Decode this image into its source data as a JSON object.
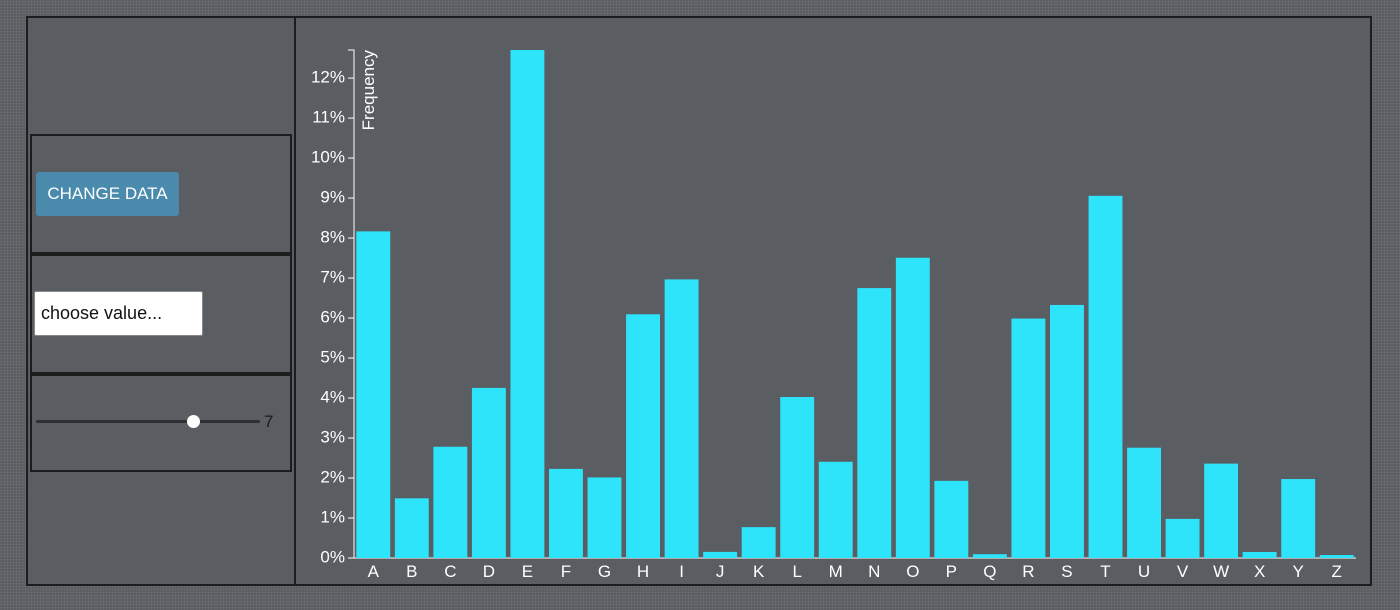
{
  "controls": {
    "change_button_label": "CHANGE DATA",
    "value_placeholder": "choose value...",
    "slider_value": "7",
    "slider_fraction": 0.7
  },
  "colors": {
    "bar": "#2ee4fa",
    "axis": "#ffffff",
    "text": "#ffffff",
    "background": "#5a5d61"
  },
  "chart_data": {
    "type": "bar",
    "title": "",
    "xlabel": "",
    "ylabel": "Frequency",
    "categories": [
      "A",
      "B",
      "C",
      "D",
      "E",
      "F",
      "G",
      "H",
      "I",
      "J",
      "K",
      "L",
      "M",
      "N",
      "O",
      "P",
      "Q",
      "R",
      "S",
      "T",
      "U",
      "V",
      "W",
      "X",
      "Y",
      "Z"
    ],
    "values": [
      8.167,
      1.492,
      2.782,
      4.253,
      12.702,
      2.228,
      2.015,
      6.094,
      6.966,
      0.153,
      0.772,
      4.025,
      2.406,
      6.749,
      7.507,
      1.929,
      0.095,
      5.987,
      6.327,
      9.056,
      2.758,
      0.978,
      2.36,
      0.15,
      1.974,
      0.074
    ],
    "ylim": [
      0,
      12.702
    ],
    "yticks": [
      0,
      1,
      2,
      3,
      4,
      5,
      6,
      7,
      8,
      9,
      10,
      11,
      12
    ],
    "ytick_labels": [
      "0%",
      "1%",
      "2%",
      "3%",
      "4%",
      "5%",
      "6%",
      "7%",
      "8%",
      "9%",
      "10%",
      "11%",
      "12%"
    ],
    "grid": false,
    "legend": "none"
  }
}
